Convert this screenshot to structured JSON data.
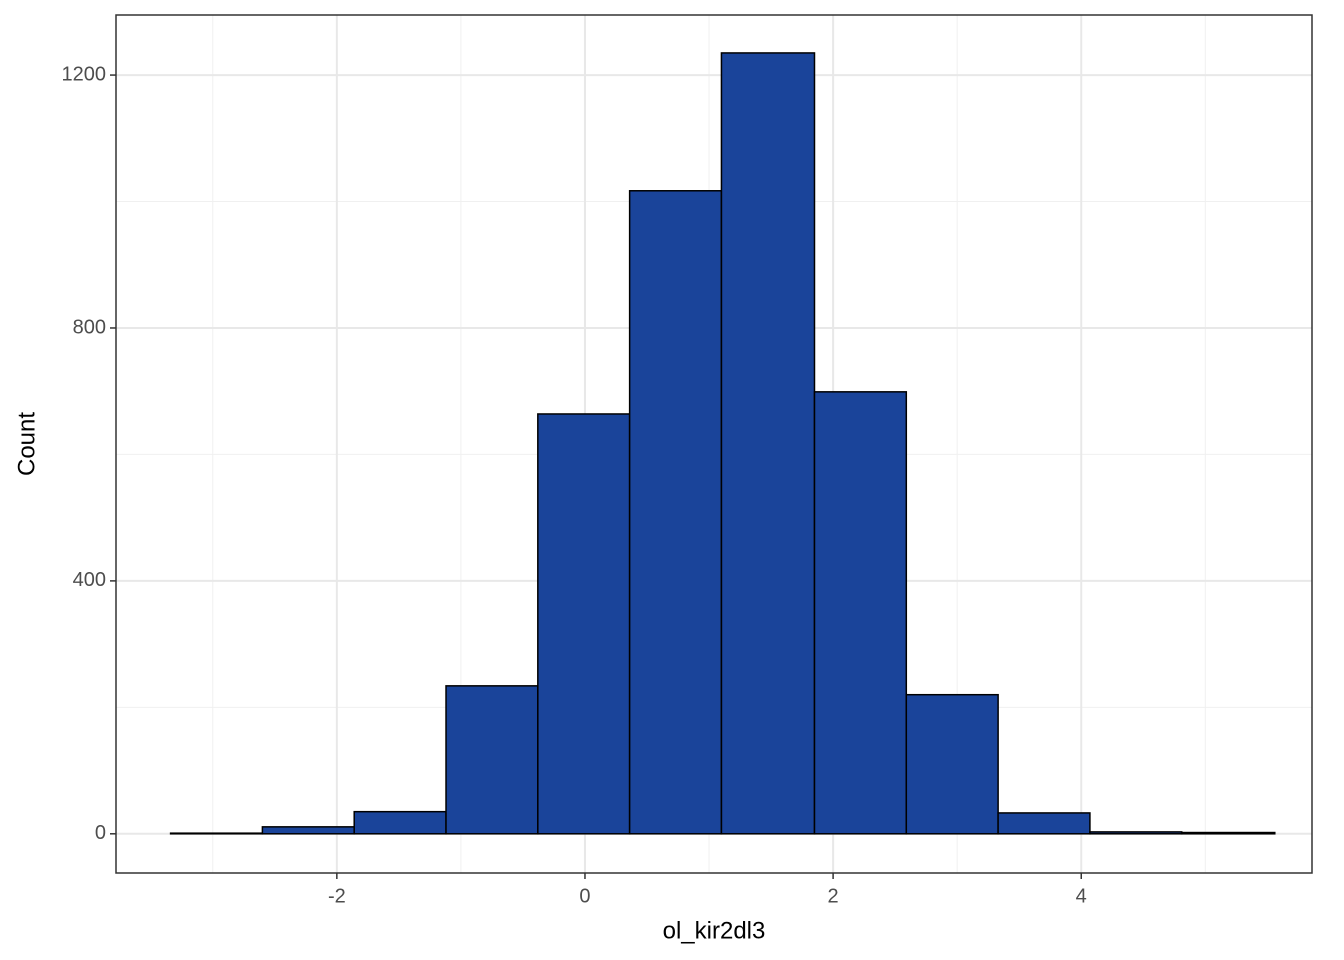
{
  "chart_data": {
    "type": "histogram",
    "x_label": "ol_kir2dl3",
    "y_label": "Count",
    "bins": [
      -3.34,
      -2.6,
      -1.86,
      -1.12,
      -0.38,
      0.36,
      1.1,
      1.85,
      2.59,
      3.33,
      4.07,
      4.81,
      5.56
    ],
    "counts": [
      1,
      11,
      35,
      234,
      664,
      1017,
      1235,
      699,
      220,
      33,
      3,
      2
    ],
    "color": "#1a449a",
    "edge_color": "#000000",
    "xlim": [
      -3.78,
      5.86
    ],
    "ylim": [
      -62,
      1295
    ],
    "xticks": [
      -2,
      0,
      2,
      4
    ],
    "yticks": [
      0,
      400,
      800,
      1200
    ],
    "x_minor_grid": [
      -3,
      -1,
      1,
      3,
      5
    ],
    "y_minor_grid": [
      200,
      600,
      1000
    ],
    "grid": true
  }
}
